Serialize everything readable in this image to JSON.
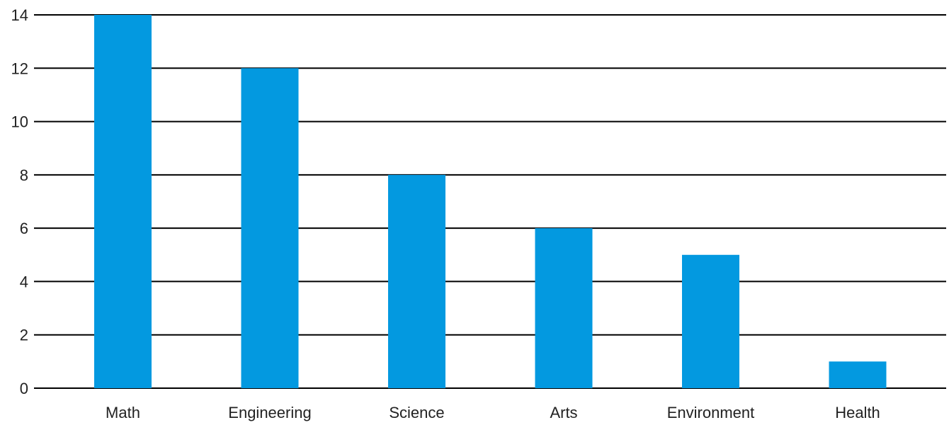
{
  "chart_data": {
    "type": "bar",
    "title": "",
    "xlabel": "",
    "ylabel": "",
    "categories": [
      "Math",
      "Engineering",
      "Science",
      "Arts",
      "Environment",
      "Health"
    ],
    "values": [
      14,
      12,
      8,
      6,
      5,
      1
    ],
    "ylim": [
      0,
      14
    ],
    "yticks": [
      0,
      2,
      4,
      6,
      8,
      10,
      12,
      14
    ],
    "bar_color": "#0399e0",
    "grid": true,
    "legend": "none"
  }
}
